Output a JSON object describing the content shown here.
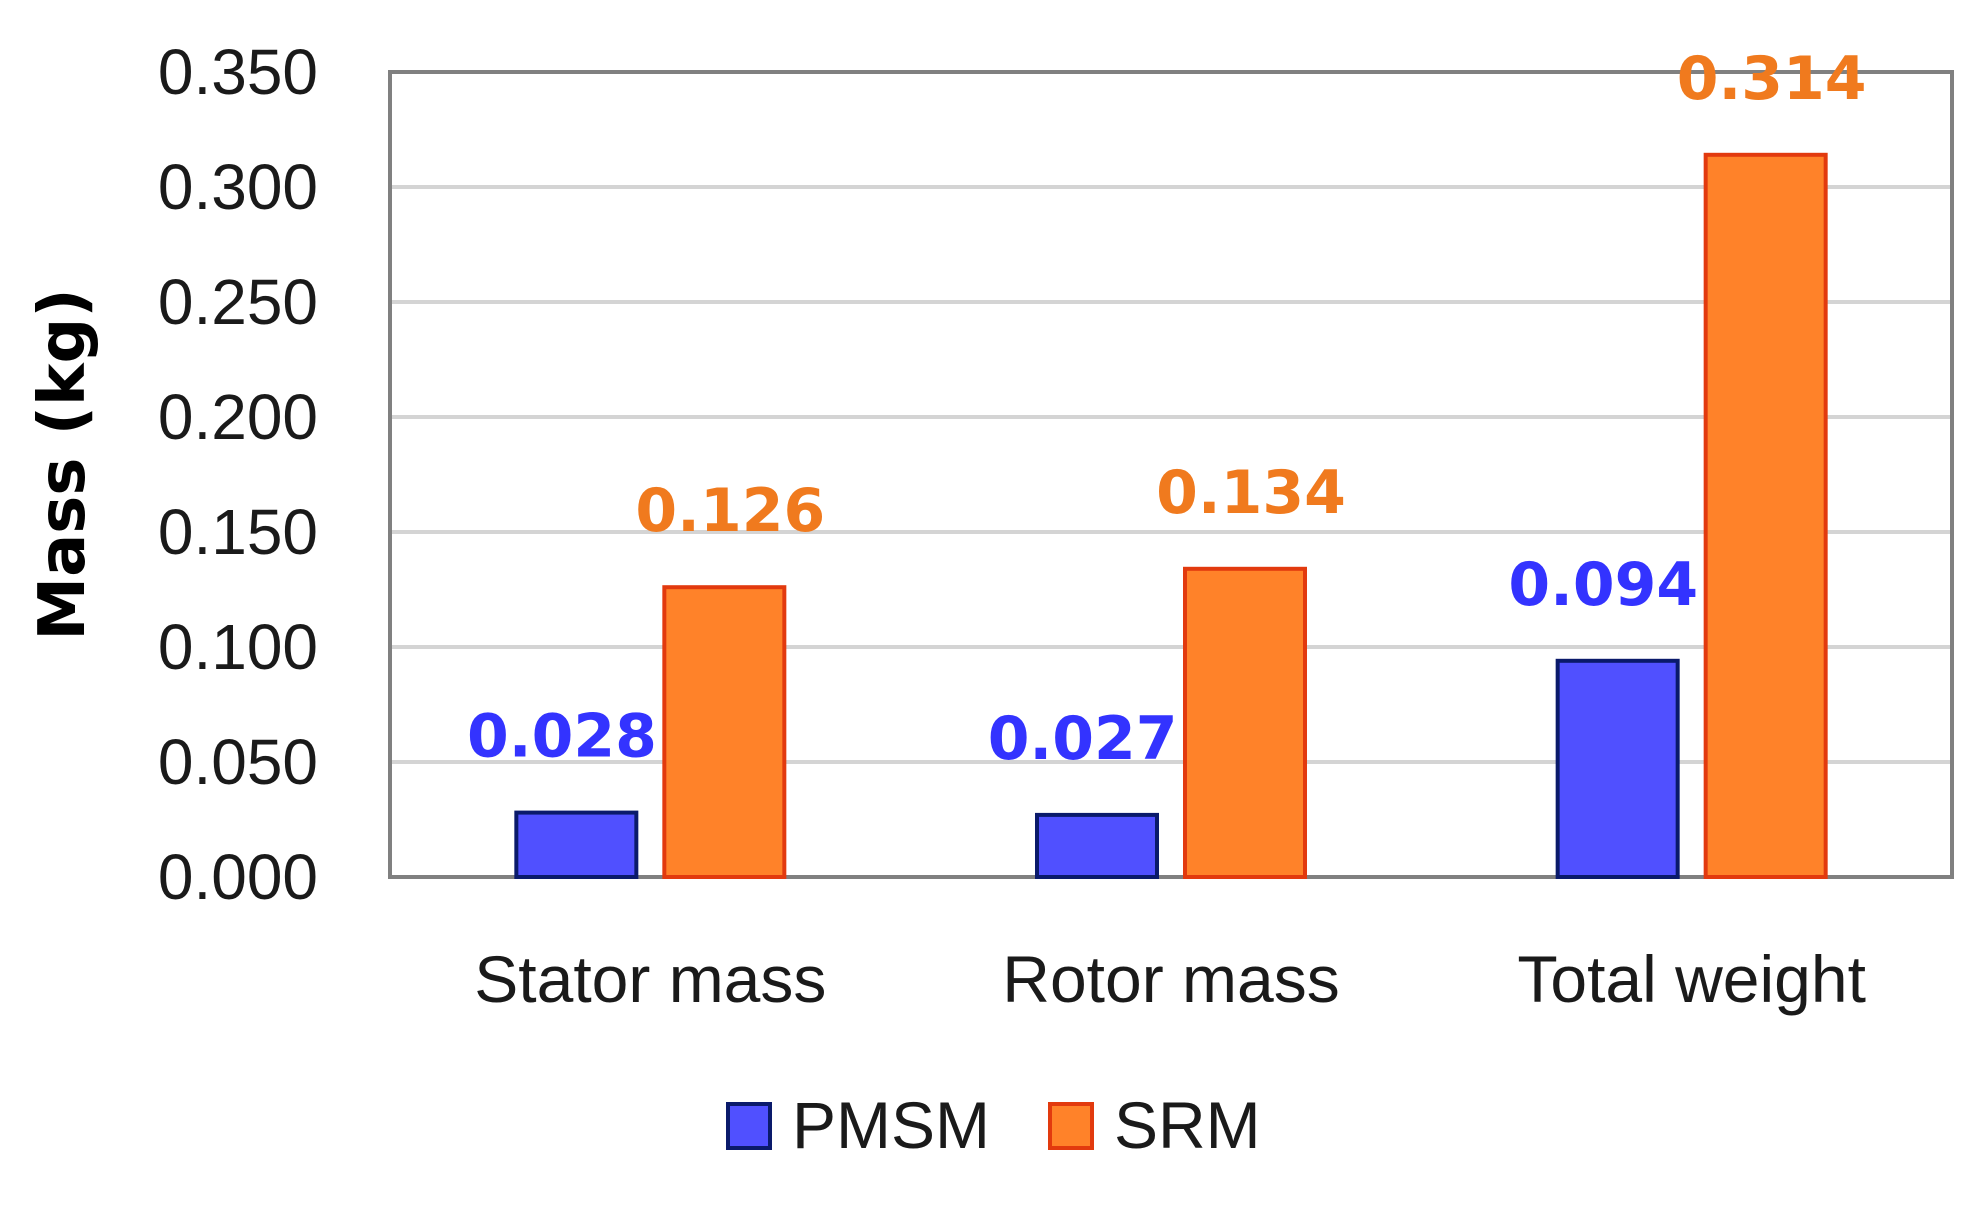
{
  "chart_data": {
    "type": "bar",
    "title": "",
    "xlabel": "",
    "ylabel": "Mass (kg)",
    "categories": [
      "Stator mass",
      "Rotor mass",
      "Total weight"
    ],
    "series": [
      {
        "name": "PMSM",
        "values": [
          0.028,
          0.027,
          0.094
        ],
        "labels": [
          "0.028",
          "0.027",
          "0.094"
        ],
        "color": "#5050FF",
        "stroke": "#0A1A6B",
        "label_color": "#3333FF"
      },
      {
        "name": "SRM",
        "values": [
          0.126,
          0.134,
          0.314
        ],
        "labels": [
          "0.126",
          "0.134",
          "0.314"
        ],
        "color": "#FF8229",
        "stroke": "#E23A0E",
        "label_color": "#F07A1E"
      }
    ],
    "ylim": [
      0,
      0.35
    ],
    "yticks": [
      0,
      0.05,
      0.1,
      0.15,
      0.2,
      0.25,
      0.3,
      0.35
    ],
    "ytick_labels": [
      "0.000",
      "0.050",
      "0.100",
      "0.150",
      "0.200",
      "0.250",
      "0.300",
      "0.350"
    ],
    "grid": true,
    "legend_position": "bottom-center"
  }
}
